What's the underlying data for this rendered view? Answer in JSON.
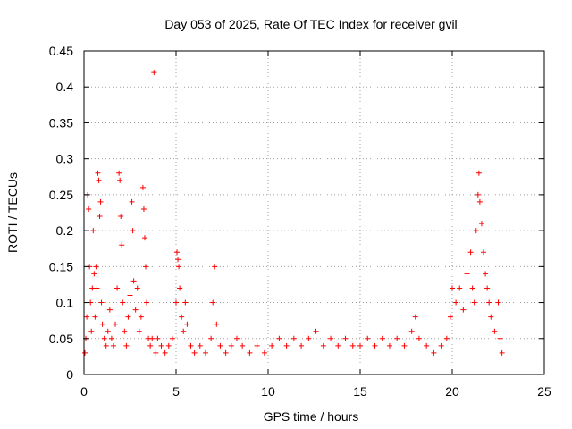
{
  "chart_data": {
    "type": "scatter",
    "title": "Day 053 of 2025, Rate Of TEC Index for receiver gvil",
    "xlabel": "GPS time / hours",
    "ylabel": "ROTI / TECUs",
    "xlim": [
      0,
      25
    ],
    "ylim": [
      0,
      0.45
    ],
    "x_ticks": [
      0,
      5,
      10,
      15,
      20,
      25
    ],
    "x_tick_labels": [
      "0",
      "5",
      "10",
      "15",
      "20",
      "25"
    ],
    "y_ticks": [
      0,
      0.05,
      0.1,
      0.15,
      0.2,
      0.25,
      0.3,
      0.35,
      0.4,
      0.45
    ],
    "y_tick_labels": [
      "0",
      "0.05",
      "0.1",
      "0.15",
      "0.2",
      "0.25",
      "0.3",
      "0.35",
      "0.4",
      "0.45"
    ],
    "grid": true,
    "marker": "+",
    "color": "#ff0000",
    "series": [
      {
        "points": [
          [
            0.05,
            0.03
          ],
          [
            0.1,
            0.05
          ],
          [
            0.15,
            0.08
          ],
          [
            0.2,
            0.25
          ],
          [
            0.25,
            0.23
          ],
          [
            0.3,
            0.15
          ],
          [
            0.35,
            0.1
          ],
          [
            0.4,
            0.06
          ],
          [
            0.45,
            0.12
          ],
          [
            0.5,
            0.2
          ],
          [
            0.55,
            0.14
          ],
          [
            0.6,
            0.08
          ],
          [
            0.65,
            0.15
          ],
          [
            0.7,
            0.12
          ],
          [
            0.75,
            0.28
          ],
          [
            0.8,
            0.27
          ],
          [
            0.85,
            0.22
          ],
          [
            0.9,
            0.24
          ],
          [
            0.95,
            0.1
          ],
          [
            1.0,
            0.07
          ],
          [
            1.1,
            0.05
          ],
          [
            1.2,
            0.04
          ],
          [
            1.3,
            0.06
          ],
          [
            1.4,
            0.09
          ],
          [
            1.5,
            0.05
          ],
          [
            1.6,
            0.04
          ],
          [
            1.7,
            0.07
          ],
          [
            1.8,
            0.12
          ],
          [
            1.9,
            0.28
          ],
          [
            1.95,
            0.27
          ],
          [
            2.0,
            0.22
          ],
          [
            2.05,
            0.18
          ],
          [
            2.1,
            0.1
          ],
          [
            2.2,
            0.06
          ],
          [
            2.3,
            0.04
          ],
          [
            2.4,
            0.08
          ],
          [
            2.5,
            0.11
          ],
          [
            2.6,
            0.24
          ],
          [
            2.65,
            0.2
          ],
          [
            2.7,
            0.13
          ],
          [
            2.8,
            0.09
          ],
          [
            2.9,
            0.12
          ],
          [
            3.0,
            0.06
          ],
          [
            3.1,
            0.08
          ],
          [
            3.2,
            0.26
          ],
          [
            3.25,
            0.23
          ],
          [
            3.3,
            0.19
          ],
          [
            3.35,
            0.15
          ],
          [
            3.4,
            0.1
          ],
          [
            3.5,
            0.05
          ],
          [
            3.6,
            0.04
          ],
          [
            3.7,
            0.05
          ],
          [
            3.8,
            0.42
          ],
          [
            3.9,
            0.03
          ],
          [
            4.0,
            0.05
          ],
          [
            4.2,
            0.04
          ],
          [
            4.4,
            0.03
          ],
          [
            4.6,
            0.04
          ],
          [
            4.8,
            0.05
          ],
          [
            5.0,
            0.1
          ],
          [
            5.05,
            0.17
          ],
          [
            5.1,
            0.16
          ],
          [
            5.15,
            0.15
          ],
          [
            5.2,
            0.12
          ],
          [
            5.3,
            0.08
          ],
          [
            5.4,
            0.06
          ],
          [
            5.5,
            0.1
          ],
          [
            5.6,
            0.07
          ],
          [
            5.8,
            0.04
          ],
          [
            6.0,
            0.03
          ],
          [
            6.3,
            0.04
          ],
          [
            6.6,
            0.03
          ],
          [
            6.9,
            0.05
          ],
          [
            7.0,
            0.1
          ],
          [
            7.1,
            0.15
          ],
          [
            7.2,
            0.07
          ],
          [
            7.4,
            0.04
          ],
          [
            7.7,
            0.03
          ],
          [
            8.0,
            0.04
          ],
          [
            8.3,
            0.05
          ],
          [
            8.6,
            0.04
          ],
          [
            9.0,
            0.03
          ],
          [
            9.4,
            0.04
          ],
          [
            9.8,
            0.03
          ],
          [
            10.2,
            0.04
          ],
          [
            10.6,
            0.05
          ],
          [
            11.0,
            0.04
          ],
          [
            11.4,
            0.05
          ],
          [
            11.8,
            0.04
          ],
          [
            12.2,
            0.05
          ],
          [
            12.6,
            0.06
          ],
          [
            13.0,
            0.04
          ],
          [
            13.4,
            0.05
          ],
          [
            13.8,
            0.04
          ],
          [
            14.2,
            0.05
          ],
          [
            14.6,
            0.04
          ],
          [
            15.0,
            0.04
          ],
          [
            15.4,
            0.05
          ],
          [
            15.8,
            0.04
          ],
          [
            16.2,
            0.05
          ],
          [
            16.6,
            0.04
          ],
          [
            17.0,
            0.05
          ],
          [
            17.4,
            0.04
          ],
          [
            17.8,
            0.06
          ],
          [
            18.0,
            0.08
          ],
          [
            18.2,
            0.05
          ],
          [
            18.6,
            0.04
          ],
          [
            19.0,
            0.03
          ],
          [
            19.4,
            0.04
          ],
          [
            19.7,
            0.05
          ],
          [
            19.9,
            0.08
          ],
          [
            20.0,
            0.12
          ],
          [
            20.2,
            0.1
          ],
          [
            20.4,
            0.12
          ],
          [
            20.6,
            0.09
          ],
          [
            20.8,
            0.14
          ],
          [
            21.0,
            0.17
          ],
          [
            21.1,
            0.12
          ],
          [
            21.2,
            0.1
          ],
          [
            21.3,
            0.2
          ],
          [
            21.4,
            0.25
          ],
          [
            21.45,
            0.28
          ],
          [
            21.5,
            0.24
          ],
          [
            21.6,
            0.21
          ],
          [
            21.7,
            0.17
          ],
          [
            21.8,
            0.14
          ],
          [
            21.9,
            0.12
          ],
          [
            22.0,
            0.1
          ],
          [
            22.1,
            0.08
          ],
          [
            22.3,
            0.06
          ],
          [
            22.5,
            0.1
          ],
          [
            22.6,
            0.05
          ],
          [
            22.7,
            0.03
          ]
        ]
      }
    ]
  }
}
